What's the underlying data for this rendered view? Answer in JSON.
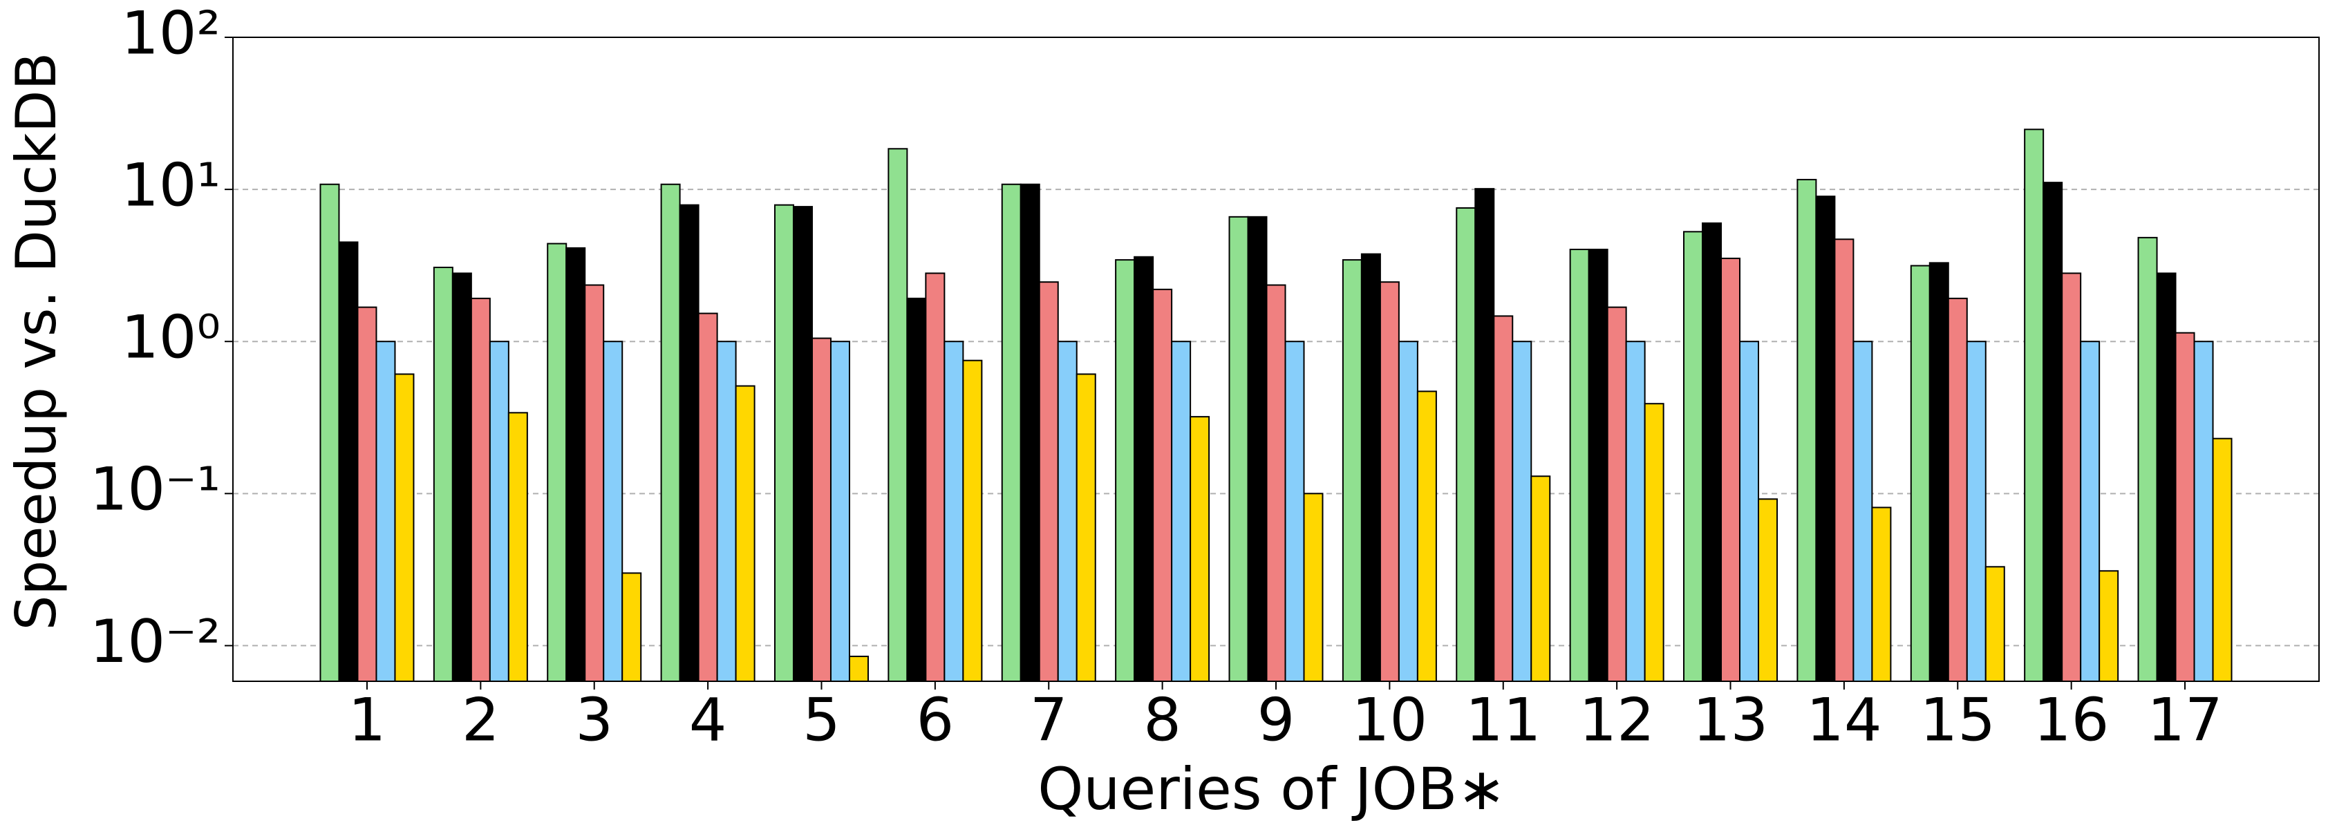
{
  "chart_data": {
    "type": "bar",
    "log_scale": true,
    "grid": true,
    "x_label": "Queries of JOB∗",
    "y_label": "Speedup vs. DuckDB",
    "categories": [
      "1",
      "2",
      "3",
      "4",
      "5",
      "6",
      "7",
      "8",
      "9",
      "10",
      "11",
      "12",
      "13",
      "14",
      "15",
      "16",
      "17"
    ],
    "series": [
      {
        "color": "#90e090",
        "values": [
          10.8,
          3.07,
          4.4,
          10.8,
          7.9,
          18.5,
          10.8,
          3.44,
          6.6,
          3.44,
          7.55,
          4.03,
          5.27,
          11.6,
          3.15,
          24.8,
          4.82
        ]
      },
      {
        "color": "#000000",
        "values": [
          4.5,
          2.81,
          4.12,
          7.9,
          7.7,
          1.92,
          10.8,
          3.6,
          6.6,
          3.76,
          10.1,
          4.03,
          6.0,
          9.0,
          3.29,
          11.1,
          2.81
        ]
      },
      {
        "color": "#f08080",
        "values": [
          1.68,
          1.92,
          2.35,
          1.53,
          1.05,
          2.81,
          2.46,
          2.2,
          2.35,
          2.46,
          1.47,
          1.68,
          3.52,
          4.7,
          1.92,
          2.81,
          1.14
        ]
      },
      {
        "color": "#87cefa",
        "values": [
          1,
          1,
          1,
          1,
          1,
          1,
          1,
          1,
          1,
          1,
          1,
          1,
          1,
          1,
          1,
          1,
          1
        ]
      },
      {
        "color": "#ffd700",
        "values": [
          0.61,
          0.34,
          0.03,
          0.51,
          0.0085,
          0.75,
          0.61,
          0.32,
          0.1,
          0.47,
          0.13,
          0.39,
          0.092,
          0.081,
          0.033,
          0.031,
          0.23
        ]
      }
    ],
    "ylim": [
      0.00583,
      100
    ],
    "yticks": [
      {
        "value": 0.01,
        "label": "10⁻²"
      },
      {
        "value": 0.1,
        "label": "10⁻¹"
      },
      {
        "value": 1,
        "label": "10⁰"
      },
      {
        "value": 10,
        "label": "10¹"
      },
      {
        "value": 100,
        "label": "10²"
      }
    ]
  }
}
